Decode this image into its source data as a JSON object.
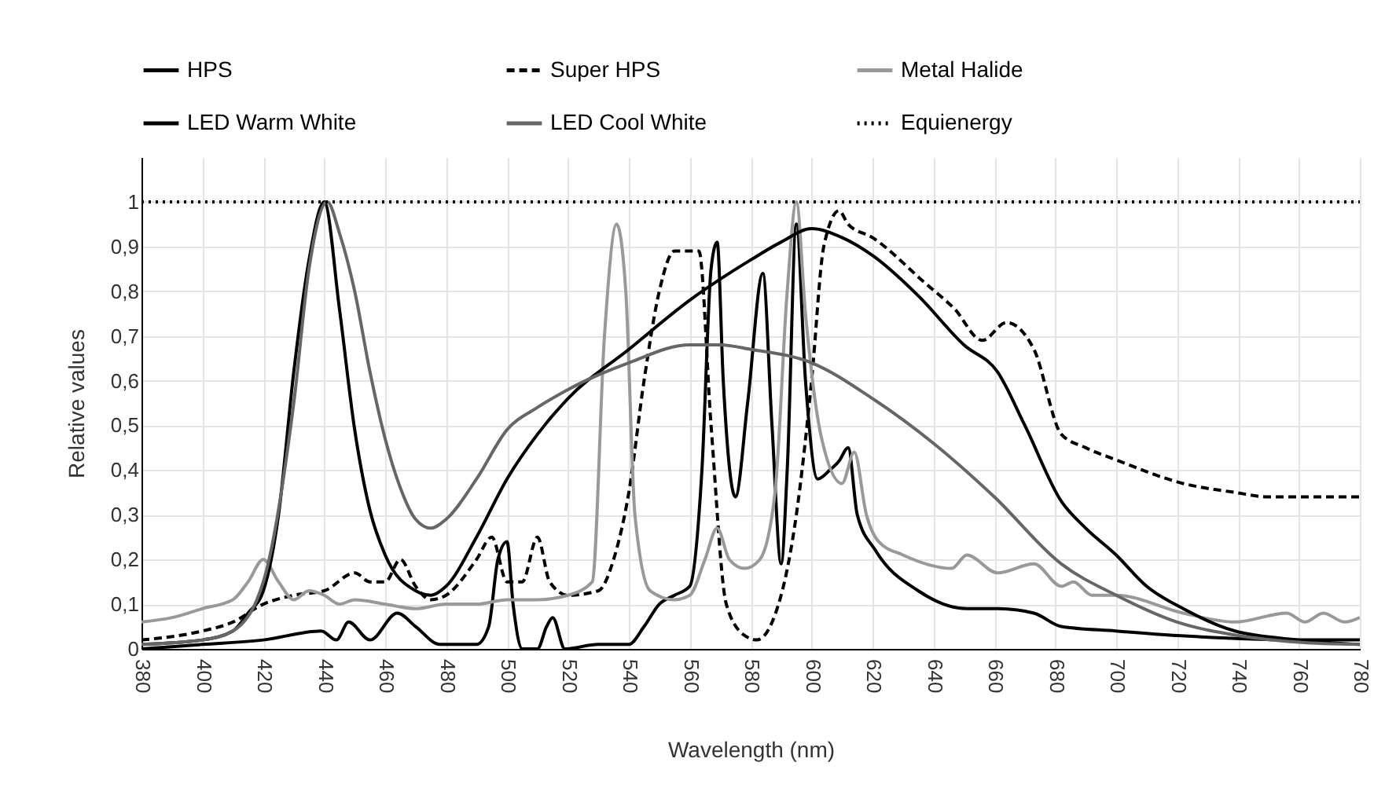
{
  "chart_data": {
    "type": "line",
    "xlabel": "Wavelength (nm)",
    "ylabel": "Relative  values",
    "xlim": [
      380,
      780
    ],
    "xticks": [
      380,
      400,
      420,
      440,
      460,
      480,
      500,
      520,
      540,
      560,
      580,
      600,
      620,
      640,
      660,
      680,
      700,
      720,
      740,
      760,
      780
    ],
    "ylim": [
      0,
      1.1
    ],
    "yticks": [
      0,
      {
        "value": 0.1,
        "label": "0,1"
      },
      {
        "value": 0.2,
        "label": "0,2"
      },
      {
        "value": 0.3,
        "label": "0,3"
      },
      {
        "value": 0.4,
        "label": "0,4"
      },
      {
        "value": 0.5,
        "label": "0,5"
      },
      {
        "value": 0.6,
        "label": "0,6"
      },
      {
        "value": 0.7,
        "label": "0,7"
      },
      {
        "value": 0.8,
        "label": "0,8"
      },
      {
        "value": 0.9,
        "label": "0,9"
      },
      1
    ],
    "grid": true,
    "legend": "top",
    "series": [
      {
        "name": "HPS",
        "color": "#000000",
        "line_style": "solid",
        "x": [
          380,
          400,
          420,
          439,
          444,
          448,
          455,
          464,
          470,
          478,
          490,
          494,
          497,
          500,
          502,
          505,
          510,
          513,
          515,
          519,
          530,
          540,
          545,
          550,
          555,
          560,
          564,
          567,
          569,
          571,
          575,
          579,
          584,
          587,
          590,
          592,
          595,
          598,
          602,
          606,
          609,
          612,
          615,
          621,
          635,
          651,
          661,
          673,
          682,
          700,
          720,
          760,
          780
        ],
        "values": [
          0,
          0.01,
          0.02,
          0.04,
          0.02,
          0.06,
          0.02,
          0.08,
          0.05,
          0.01,
          0.01,
          0.05,
          0.2,
          0.24,
          0.1,
          0,
          0,
          0.05,
          0.07,
          0,
          0.01,
          0.01,
          0.05,
          0.1,
          0.12,
          0.14,
          0.4,
          0.85,
          0.91,
          0.6,
          0.34,
          0.55,
          0.84,
          0.5,
          0.19,
          0.4,
          0.95,
          0.6,
          0.38,
          0.4,
          0.42,
          0.45,
          0.3,
          0.22,
          0.13,
          0.09,
          0.09,
          0.08,
          0.05,
          0.04,
          0.03,
          0.02,
          0.02
        ]
      },
      {
        "name": "Super HPS",
        "color": "#000000",
        "line_style": "dashed",
        "x": [
          380,
          400,
          410,
          420,
          430,
          440,
          450,
          455,
          460,
          465,
          470,
          475,
          480,
          490,
          495,
          500,
          505,
          510,
          514,
          520,
          530,
          535,
          540,
          545,
          550,
          555,
          563,
          567,
          572,
          578,
          582,
          590,
          595,
          600,
          604,
          609,
          612,
          620,
          637,
          647,
          656,
          664,
          673,
          682,
          690,
          701,
          722,
          739,
          750,
          780
        ],
        "values": [
          0.02,
          0.04,
          0.06,
          0.1,
          0.12,
          0.13,
          0.17,
          0.15,
          0.15,
          0.2,
          0.14,
          0.11,
          0.12,
          0.2,
          0.25,
          0.15,
          0.15,
          0.25,
          0.15,
          0.12,
          0.13,
          0.2,
          0.35,
          0.6,
          0.8,
          0.89,
          0.89,
          0.5,
          0.1,
          0.03,
          0.02,
          0.12,
          0.3,
          0.6,
          0.9,
          0.98,
          0.95,
          0.92,
          0.82,
          0.76,
          0.69,
          0.73,
          0.67,
          0.48,
          0.45,
          0.42,
          0.37,
          0.35,
          0.34,
          0.34
        ]
      },
      {
        "name": "Metal Halide",
        "color": "#999999",
        "line_style": "solid",
        "x": [
          380,
          390,
          400,
          410,
          415,
          420,
          425,
          430,
          435,
          440,
          445,
          450,
          460,
          470,
          480,
          490,
          500,
          510,
          520,
          528,
          532,
          536,
          539,
          542,
          547,
          555,
          560,
          565,
          569,
          573,
          578,
          583,
          588,
          592,
          595,
          598,
          603,
          610,
          614,
          618,
          622,
          630,
          646,
          651,
          661,
          673,
          682,
          686,
          692,
          700,
          722,
          739,
          756,
          762,
          768,
          775,
          780
        ],
        "values": [
          0.06,
          0.07,
          0.09,
          0.11,
          0.15,
          0.2,
          0.15,
          0.11,
          0.13,
          0.12,
          0.1,
          0.11,
          0.1,
          0.09,
          0.1,
          0.1,
          0.11,
          0.11,
          0.12,
          0.15,
          0.7,
          0.95,
          0.8,
          0.3,
          0.13,
          0.11,
          0.12,
          0.2,
          0.27,
          0.2,
          0.18,
          0.2,
          0.35,
          0.8,
          1,
          0.75,
          0.48,
          0.37,
          0.44,
          0.3,
          0.24,
          0.21,
          0.18,
          0.21,
          0.17,
          0.19,
          0.14,
          0.15,
          0.12,
          0.12,
          0.08,
          0.06,
          0.08,
          0.06,
          0.08,
          0.06,
          0.07
        ]
      },
      {
        "name": "LED Warm White",
        "color": "#000000",
        "line_style": "solid",
        "x": [
          380,
          400,
          410,
          415,
          420,
          425,
          430,
          435,
          440,
          445,
          450,
          455,
          460,
          470,
          475,
          480,
          490,
          500,
          510,
          520,
          540,
          560,
          580,
          590,
          600,
          610,
          620,
          635,
          650,
          661,
          670,
          682,
          690,
          700,
          710,
          722,
          739,
          760,
          780
        ],
        "values": [
          0.01,
          0.02,
          0.04,
          0.08,
          0.13,
          0.3,
          0.62,
          0.87,
          1,
          0.76,
          0.49,
          0.31,
          0.21,
          0.13,
          0.12,
          0.14,
          0.25,
          0.38,
          0.48,
          0.56,
          0.67,
          0.78,
          0.87,
          0.91,
          0.94,
          0.92,
          0.88,
          0.79,
          0.68,
          0.62,
          0.5,
          0.33,
          0.27,
          0.21,
          0.14,
          0.09,
          0.04,
          0.02,
          0.01
        ]
      },
      {
        "name": "LED Cool White",
        "color": "#666666",
        "line_style": "solid",
        "x": [
          380,
          400,
          410,
          420,
          430,
          435,
          441,
          445,
          450,
          455,
          460,
          465,
          470,
          475,
          480,
          490,
          500,
          510,
          520,
          540,
          560,
          570,
          580,
          600,
          620,
          640,
          660,
          682,
          700,
          720,
          740,
          760,
          780
        ],
        "values": [
          0.01,
          0.02,
          0.04,
          0.15,
          0.55,
          0.85,
          1,
          0.93,
          0.8,
          0.62,
          0.47,
          0.36,
          0.29,
          0.27,
          0.29,
          0.38,
          0.49,
          0.54,
          0.58,
          0.64,
          0.68,
          0.68,
          0.67,
          0.64,
          0.56,
          0.46,
          0.34,
          0.19,
          0.12,
          0.06,
          0.03,
          0.015,
          0.01
        ]
      },
      {
        "name": "Equienergy",
        "color": "#000000",
        "line_style": "dotted",
        "x": [
          380,
          780
        ],
        "values": [
          1,
          1
        ]
      }
    ]
  }
}
